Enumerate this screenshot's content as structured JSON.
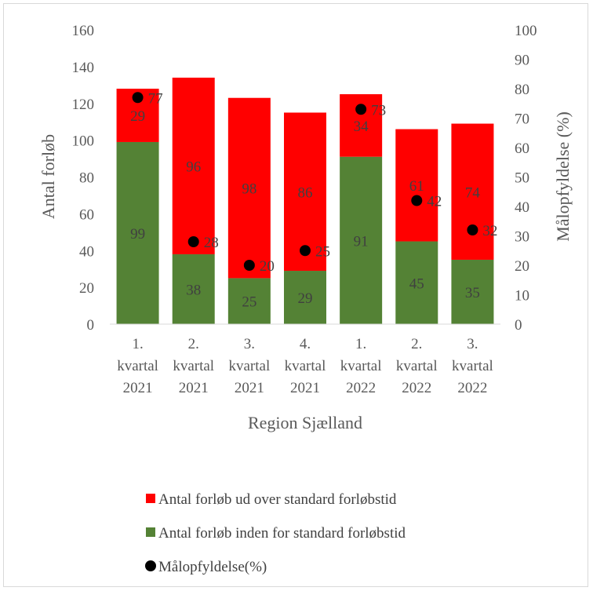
{
  "chart_data": {
    "type": "bar",
    "stacked": true,
    "categories": [
      [
        "1.",
        "kvartal",
        "2021"
      ],
      [
        "2.",
        "kvartal",
        "2021"
      ],
      [
        "3.",
        "kvartal",
        "2021"
      ],
      [
        "4.",
        "kvartal",
        "2021"
      ],
      [
        "1.",
        "kvartal",
        "2022"
      ],
      [
        "2.",
        "kvartal",
        "2022"
      ],
      [
        "3.",
        "kvartal",
        "2022"
      ]
    ],
    "series": [
      {
        "name": "Antal forløb inden for standard forløbstid",
        "color": "#548235",
        "values": [
          99,
          38,
          25,
          29,
          91,
          45,
          35
        ]
      },
      {
        "name": "Antal forløb ud over standard forløbstid",
        "color": "#ff0000",
        "values": [
          29,
          96,
          98,
          86,
          34,
          61,
          74
        ]
      },
      {
        "name": "Målopfyldelse(%)",
        "type": "scatter",
        "axis": "right",
        "color": "#000000",
        "values": [
          77,
          28,
          20,
          25,
          73,
          42,
          32
        ]
      }
    ],
    "xlabel": "Region Sjælland",
    "ylabel": "Antal forløb",
    "y2label": "Målopfyldelse (%)",
    "ylim": [
      0,
      160
    ],
    "y_ticks": [
      0,
      20,
      40,
      60,
      80,
      100,
      120,
      140,
      160
    ],
    "y2lim": [
      0,
      100
    ],
    "y2_ticks": [
      0,
      10,
      20,
      30,
      40,
      50,
      60,
      70,
      80,
      90,
      100
    ],
    "grid": false,
    "legend_position": "bottom",
    "legend": [
      {
        "label": "Antal forløb ud over standard forløbstid",
        "color": "#ff0000",
        "marker": "square"
      },
      {
        "label": "Antal forløb inden for standard forløbstid",
        "color": "#548235",
        "marker": "square"
      },
      {
        "label": "Målopfyldelse(%)",
        "color": "#000000",
        "marker": "circle"
      }
    ]
  }
}
